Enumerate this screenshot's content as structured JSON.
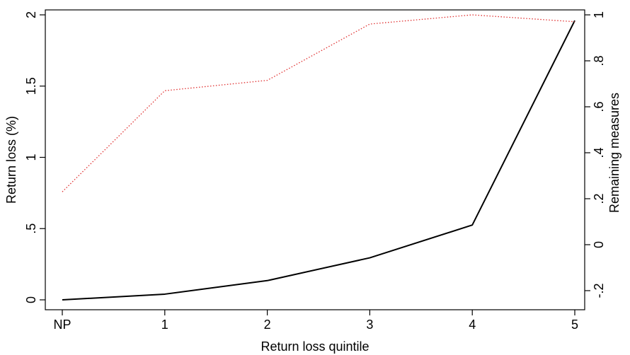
{
  "chart_data": {
    "type": "line",
    "title": "",
    "categories": [
      "NP",
      "1",
      "2",
      "3",
      "4",
      "5"
    ],
    "x": [
      0,
      1,
      2,
      3,
      4,
      5
    ],
    "xlabel": "Return loss quintile",
    "ylabel": "Return loss (%)",
    "ylabel_right": "Remaining measures",
    "ylim": [
      0,
      2
    ],
    "ylim_right": [
      -0.2,
      1
    ],
    "yticks": [
      0,
      0.5,
      1,
      1.5,
      2
    ],
    "yticks_labels": [
      "0",
      ".5",
      "1",
      "1.5",
      "2"
    ],
    "yticks_right": [
      -0.2,
      0,
      0.2,
      0.4,
      0.6,
      0.8,
      1
    ],
    "yticks_right_labels": [
      "-.2",
      "0",
      ".2",
      ".4",
      ".6",
      ".8",
      "1"
    ],
    "grid": false,
    "legend": "none",
    "series": [
      {
        "axis": "left",
        "color": "#000000",
        "style": "solid",
        "values": [
          0.0,
          0.04,
          0.135,
          0.295,
          0.525,
          1.96
        ]
      },
      {
        "axis": "right",
        "color": "#e03030",
        "style": "dotted",
        "values": [
          0.23,
          0.67,
          0.715,
          0.96,
          1.0,
          0.97
        ]
      }
    ]
  }
}
